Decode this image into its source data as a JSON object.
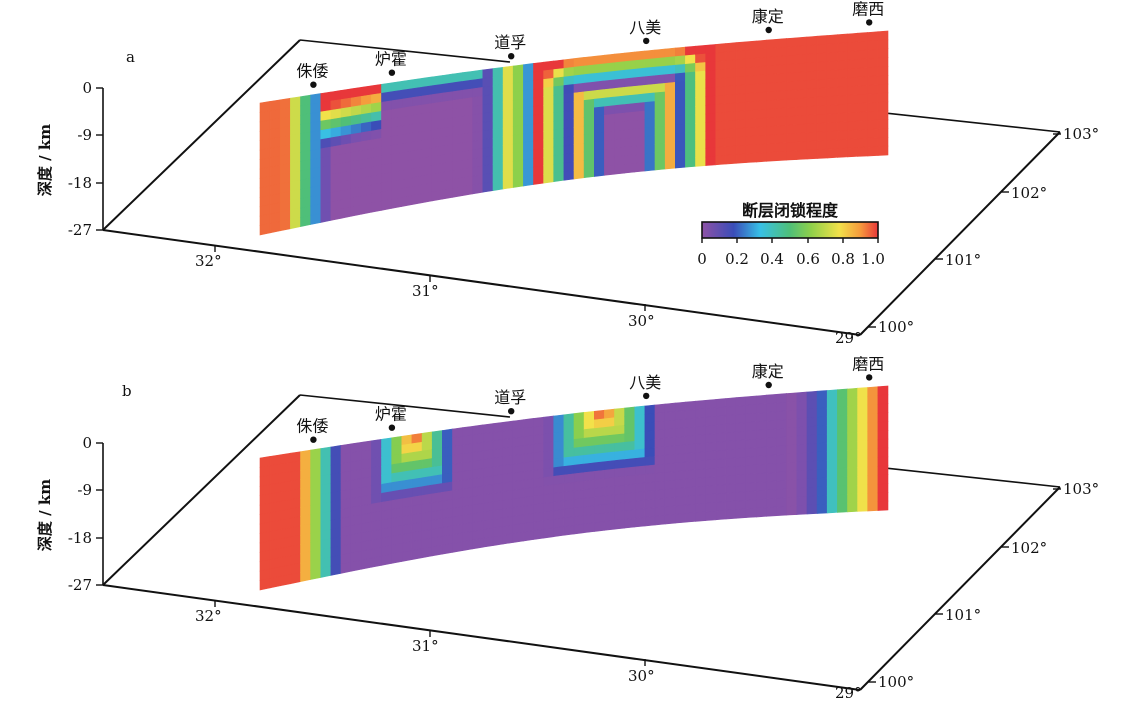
{
  "chart_data": [
    {
      "type": "heatmap",
      "panel": "a",
      "zlabel": "深度 / km",
      "depth_ticks": [
        0,
        -9,
        -18,
        -27
      ],
      "latitude_ticks": [
        "32°",
        "31°",
        "30°",
        "29°"
      ],
      "longitude_ticks": [
        "100°",
        "101°",
        "102°",
        "103°"
      ],
      "stations": [
        "侏倭",
        "炉霍",
        "道孚",
        "八美",
        "康定",
        "磨西"
      ],
      "colorbar": {
        "title": "断层闭锁程度",
        "ticks": [
          "0",
          "0.2",
          "0.4",
          "0.6",
          "0.8",
          "1.0"
        ],
        "range": [
          0,
          1
        ]
      },
      "locking_degree_description": "fault locking along strike (columns, NW to SE) vs depth (rows, 0 to -27 km)"
    },
    {
      "type": "heatmap",
      "panel": "b",
      "zlabel": "深度 / km",
      "depth_ticks": [
        0,
        -9,
        -18,
        -27
      ],
      "latitude_ticks": [
        "32°",
        "31°",
        "30°",
        "29°"
      ],
      "longitude_ticks": [
        "100°",
        "101°",
        "102°",
        "103°"
      ],
      "stations": [
        "侏倭",
        "炉霍",
        "道孚",
        "八美",
        "康定",
        "磨西"
      ]
    }
  ],
  "panels": [
    {
      "label": "a",
      "stations": [
        "侏倭",
        "炉霍",
        "道孚",
        "八美",
        "康定",
        "磨西"
      ]
    },
    {
      "label": "b",
      "stations": [
        "侏倭",
        "炉霍",
        "道孚",
        "八美",
        "康定",
        "磨西"
      ]
    }
  ],
  "zlabel": "深度 / km",
  "depth_ticks": [
    "0",
    "-9",
    "-18",
    "-27"
  ],
  "lat_ticks": [
    "32°",
    "31°",
    "30°",
    "29°"
  ],
  "lon_ticks": [
    "100°",
    "101°",
    "102°",
    "103°"
  ],
  "colorbar": {
    "title": "断层闭锁程度",
    "ticks": [
      "0",
      "0.2",
      "0.4",
      "0.6",
      "0.8",
      "1.0"
    ]
  }
}
